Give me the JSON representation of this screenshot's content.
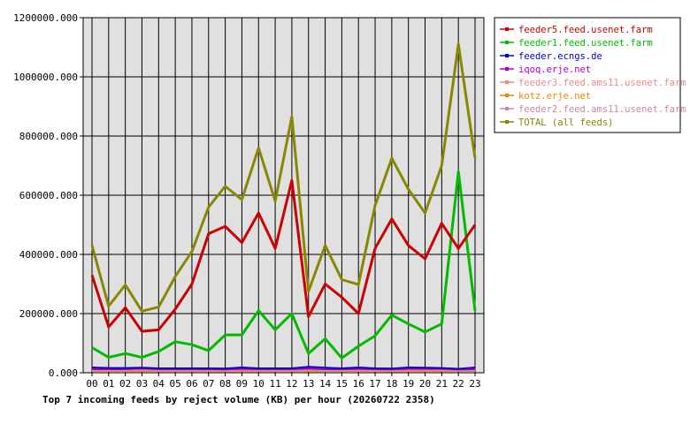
{
  "chart_data": {
    "type": "line",
    "title": "Top 7 incoming feeds by reject volume (KB) per hour (20260722 2358)",
    "xlabel": "",
    "ylabel": "",
    "ylim": [
      0,
      1200000
    ],
    "yticks": [
      "0.000",
      "200000.000",
      "400000.000",
      "600000.000",
      "800000.000",
      "1000000.000",
      "1200000.000"
    ],
    "categories": [
      "00",
      "01",
      "02",
      "03",
      "04",
      "05",
      "06",
      "07",
      "08",
      "09",
      "10",
      "11",
      "12",
      "13",
      "14",
      "15",
      "16",
      "17",
      "18",
      "19",
      "20",
      "21",
      "22",
      "23"
    ],
    "grid": true,
    "legend_position": "right",
    "series": [
      {
        "name": "feeder5.feed.usenet.farm",
        "color": "#cc0000",
        "values": [
          330000,
          155000,
          220000,
          140000,
          145000,
          215000,
          300000,
          470000,
          495000,
          440000,
          540000,
          420000,
          650000,
          190000,
          300000,
          255000,
          200000,
          420000,
          520000,
          430000,
          385000,
          505000,
          420000,
          500000
        ]
      },
      {
        "name": "feeder1.feed.usenet.farm",
        "color": "#00bb00",
        "values": [
          85000,
          52000,
          65000,
          52000,
          72000,
          105000,
          95000,
          75000,
          128000,
          128000,
          210000,
          145000,
          200000,
          65000,
          115000,
          50000,
          90000,
          125000,
          195000,
          165000,
          138000,
          165000,
          680000,
          210000
        ]
      },
      {
        "name": "feeder.ecngs.de",
        "color": "#0000cc",
        "values": [
          18000,
          16000,
          16000,
          17000,
          15000,
          15000,
          15000,
          15000,
          14000,
          18000,
          15000,
          15000,
          15000,
          20000,
          17000,
          15000,
          18000,
          15000,
          14000,
          18000,
          17000,
          16000,
          13000,
          18000
        ]
      },
      {
        "name": "iqoq.erje.net",
        "color": "#aa00cc",
        "values": [
          12000,
          12000,
          12000,
          14000,
          12000,
          12000,
          12000,
          12000,
          11000,
          13000,
          12000,
          12000,
          12000,
          14000,
          12000,
          12000,
          13000,
          12000,
          11000,
          13000,
          13000,
          13000,
          11000,
          12000
        ]
      },
      {
        "name": "feeder3.feed.ams11.usenet.farm",
        "color": "#ee8888",
        "values": [
          8000,
          8000,
          8000,
          9000,
          8000,
          8000,
          8000,
          8000,
          7000,
          8000,
          8000,
          8000,
          8000,
          9000,
          8000,
          8000,
          8000,
          8000,
          7000,
          8000,
          9000,
          9000,
          8000,
          8000
        ]
      },
      {
        "name": "kotz.erje.net",
        "color": "#ee8800",
        "values": [
          6000,
          6000,
          6000,
          6000,
          6000,
          6000,
          6000,
          6000,
          5000,
          6000,
          6000,
          6000,
          6000,
          6000,
          6000,
          6000,
          6000,
          6000,
          5000,
          6000,
          6000,
          6000,
          6000,
          6000
        ]
      },
      {
        "name": "feeder2.feed.ams11.usenet.farm",
        "color": "#cc8899",
        "values": [
          10000,
          10000,
          10000,
          11000,
          10000,
          10000,
          10000,
          10000,
          9000,
          10000,
          10000,
          10000,
          10000,
          11000,
          10000,
          10000,
          10000,
          10000,
          9000,
          10000,
          11000,
          11000,
          10000,
          10000
        ]
      },
      {
        "name": "TOTAL (all feeds)",
        "color": "#888800",
        "values": [
          430000,
          225000,
          297000,
          208000,
          222000,
          325000,
          410000,
          560000,
          630000,
          585000,
          760000,
          580000,
          865000,
          275000,
          430000,
          315000,
          298000,
          565000,
          725000,
          620000,
          540000,
          700000,
          1110000,
          725000
        ]
      }
    ]
  }
}
